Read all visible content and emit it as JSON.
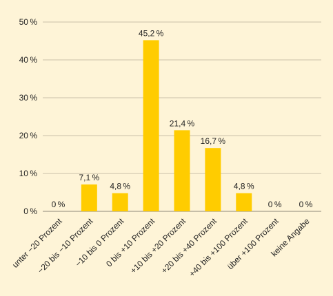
{
  "chart_data": {
    "type": "bar",
    "categories": [
      "unter −20 Prozent",
      "−20 bis −10 Prozent",
      "−10 bis 0 Prozent",
      "0 bis +10 Prozent",
      "+10 bis +20 Prozent",
      "+20 bis +40 Prozent",
      "+40 bis +100 Prozent",
      "über +100 Prozent",
      "keine Angabe"
    ],
    "values": [
      0,
      7.1,
      4.8,
      45.2,
      21.4,
      16.7,
      4.8,
      0,
      0
    ],
    "value_labels": [
      "0 %",
      "7,1 %",
      "4,8 %",
      "45,2 %",
      "21,4 %",
      "16,7 %",
      "4,8 %",
      "0 %",
      "0 %"
    ],
    "yticks": [
      0,
      10,
      20,
      30,
      40,
      50
    ],
    "ytick_labels": [
      "0 %",
      "10 %",
      "20 %",
      "30 %",
      "40 %",
      "50 %"
    ],
    "ylim": [
      0,
      50
    ],
    "title": "",
    "xlabel": "",
    "ylabel": "",
    "grid": true,
    "colors": {
      "bar": "#ffcc00",
      "background": "#fef4d7",
      "grid": "#c9c1a8"
    }
  }
}
